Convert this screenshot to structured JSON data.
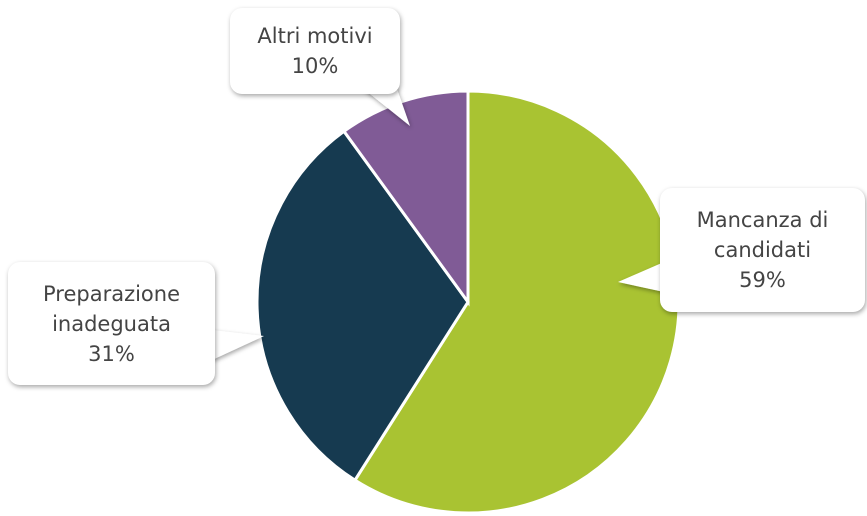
{
  "chart_data": {
    "type": "pie",
    "categories": [
      "Mancanza di candidati",
      "Preparazione inadeguata",
      "Altri motivi"
    ],
    "values": [
      59,
      31,
      10
    ],
    "value_labels": [
      "59%",
      "31%",
      "10%"
    ],
    "colors": [
      "#a9c332",
      "#163a50",
      "#805b96"
    ]
  }
}
